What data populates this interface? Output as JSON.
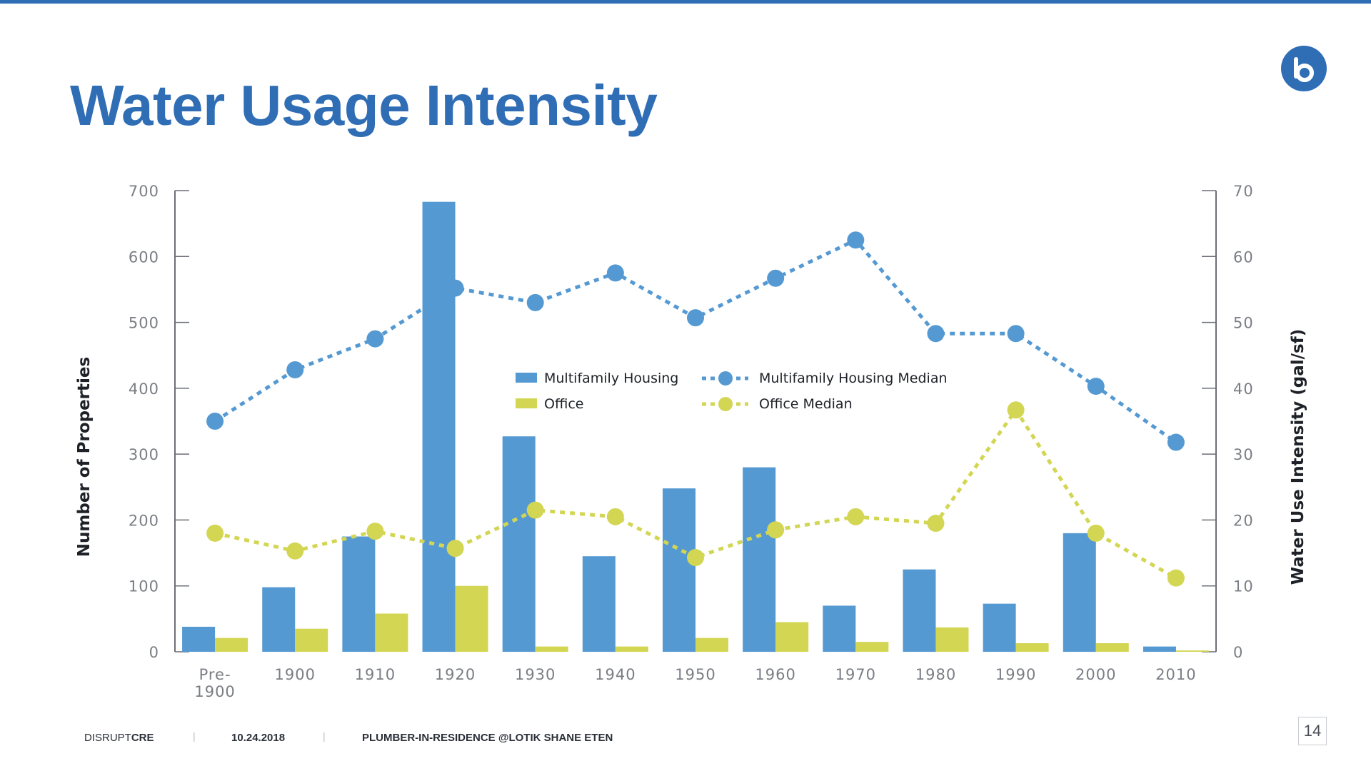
{
  "slide": {
    "title": "Water Usage Intensity",
    "accent_color": "#2f6db5",
    "logo_icon": "lotik-logo-icon"
  },
  "footer": {
    "brand_light": "DISRUPT",
    "brand_bold": "CRE",
    "separator": "|",
    "date": "10.24.2018",
    "presenter": "PLUMBER-IN-RESIDENCE @LOTIK SHANE ETEN",
    "page_number": "14"
  },
  "chart_data": {
    "type": "bar",
    "categories": [
      "Pre-1900",
      "1900",
      "1910",
      "1920",
      "1930",
      "1940",
      "1950",
      "1960",
      "1970",
      "1980",
      "1990",
      "2000",
      "2010"
    ],
    "category_labels": [
      [
        "Pre-",
        "1900"
      ],
      [
        "1900"
      ],
      [
        "1910"
      ],
      [
        "1920"
      ],
      [
        "1930"
      ],
      [
        "1940"
      ],
      [
        "1950"
      ],
      [
        "1960"
      ],
      [
        "1970"
      ],
      [
        "1980"
      ],
      [
        "1990"
      ],
      [
        "2000"
      ],
      [
        "2010"
      ]
    ],
    "ylabel": "Number of Properties",
    "ylabel_right": "Water Use Intensity (gal/sf)",
    "ylim": [
      0,
      700
    ],
    "ylim_right": [
      0,
      70
    ],
    "yticks": [
      0,
      100,
      200,
      300,
      400,
      500,
      600,
      700
    ],
    "yticks_right": [
      0,
      10,
      20,
      30,
      40,
      50,
      60,
      70
    ],
    "grid": false,
    "legend_position": "center",
    "series": [
      {
        "name": "Multifamily Housing",
        "kind": "bar",
        "axis": "left",
        "color": "#5599d2",
        "values": [
          38,
          98,
          175,
          683,
          327,
          145,
          248,
          280,
          70,
          125,
          73,
          180,
          8
        ]
      },
      {
        "name": "Office",
        "kind": "bar",
        "axis": "left",
        "color": "#d2d653",
        "values": [
          21,
          35,
          58,
          100,
          8,
          8,
          21,
          45,
          15,
          37,
          13,
          13,
          2
        ]
      },
      {
        "name": "Multifamily Housing Median",
        "kind": "line",
        "axis": "right",
        "color": "#5599d2",
        "values": [
          35,
          42.8,
          47.5,
          55.2,
          53,
          57.5,
          50.7,
          56.7,
          62.5,
          48.3,
          48.3,
          40.3,
          31.8
        ]
      },
      {
        "name": "Office Median",
        "kind": "line",
        "axis": "right",
        "color": "#d2d653",
        "values": [
          18,
          15.3,
          18.3,
          15.7,
          21.5,
          20.5,
          14.3,
          18.5,
          20.5,
          19.5,
          36.7,
          18,
          11.2
        ]
      }
    ]
  }
}
